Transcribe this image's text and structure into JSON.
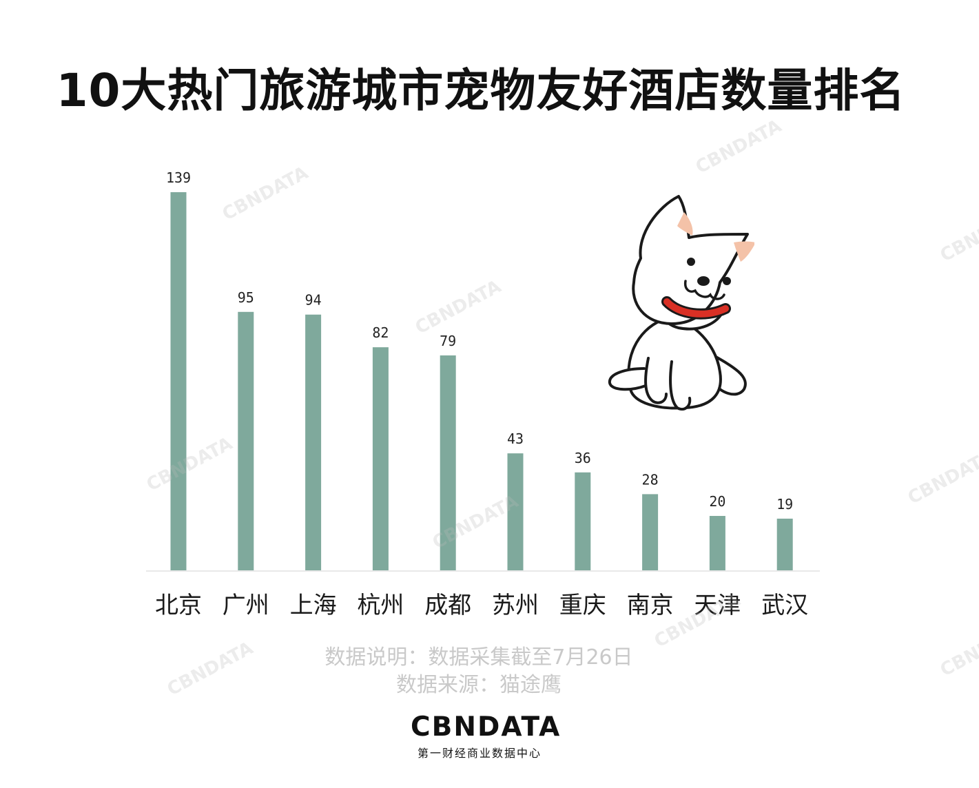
{
  "title": "10大热门旅游城市宠物友好酒店数量排名",
  "chart_data": {
    "type": "bar",
    "categories": [
      "北京",
      "广州",
      "上海",
      "杭州",
      "成都",
      "苏州",
      "重庆",
      "南京",
      "天津",
      "武汉"
    ],
    "values": [
      139,
      95,
      94,
      82,
      79,
      43,
      36,
      28,
      20,
      19
    ],
    "ylim": [
      0,
      139
    ],
    "grid": false,
    "bar_color": "#7fa99c"
  },
  "notes": {
    "line1": "数据说明：数据采集截至7月26日",
    "line2": "数据来源：猫途鹰"
  },
  "logo": {
    "wordmark": "CBNDATA",
    "subtitle": "第一财经商业数据中心"
  },
  "watermark": "CBNDATA",
  "illustration": "cartoon-dog-with-red-collar"
}
